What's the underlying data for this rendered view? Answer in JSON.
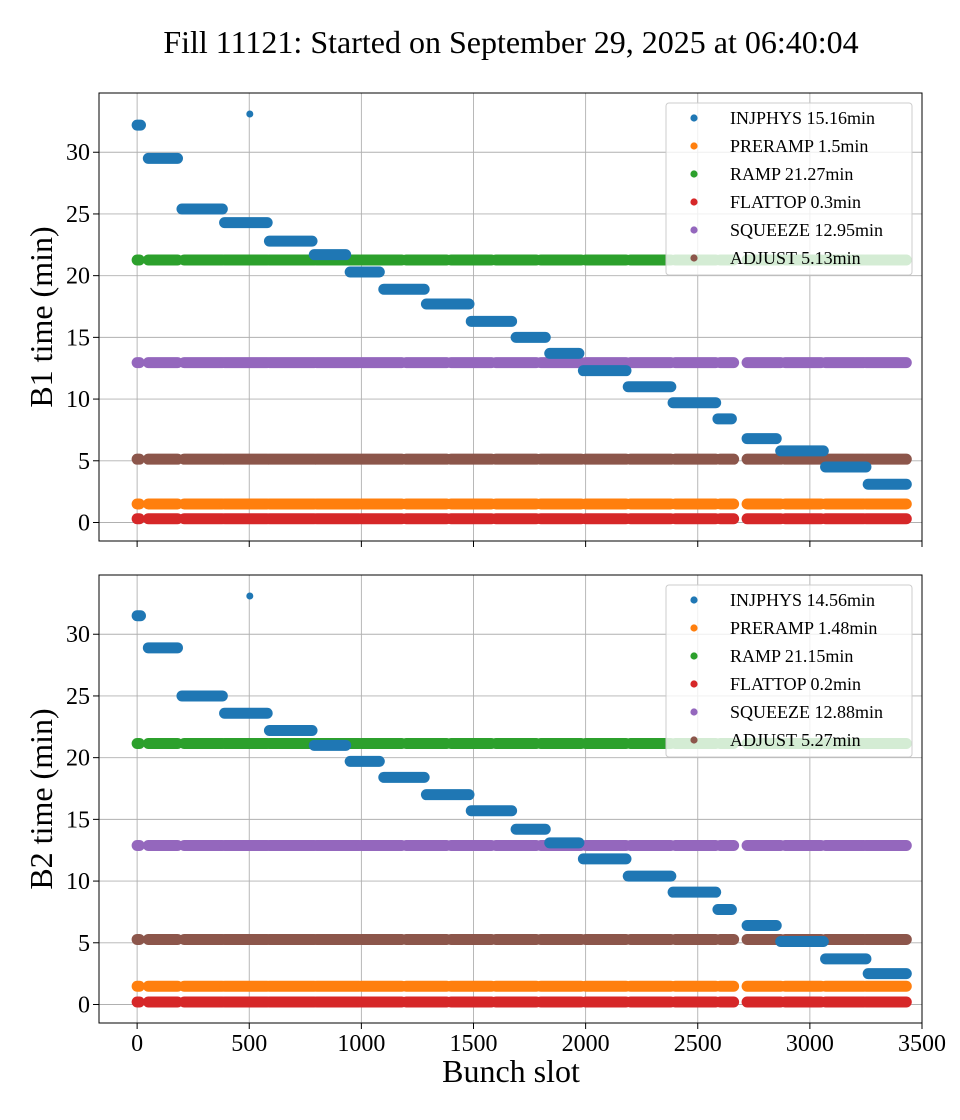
{
  "figure": {
    "title": "Fill 11121: Started on September 29, 2025 at 06:40:04",
    "xlabel": "Bunch slot"
  },
  "colors": {
    "INJPHYS": "#1f77b4",
    "PRERAMP": "#ff7f0e",
    "RAMP": "#2ca02c",
    "FLATTOP": "#d62728",
    "SQUEEZE": "#9467bd",
    "ADJUST": "#8c564b"
  },
  "chart_data": [
    {
      "type": "scatter",
      "ylabel": "B1 time (min)",
      "xlabel": "",
      "xlim": [
        -170,
        3500
      ],
      "ylim": [
        -1.5,
        34.8
      ],
      "xticks": [
        0,
        500,
        1000,
        1500,
        2000,
        2500,
        3000,
        3500
      ],
      "xtick_labels_shown": false,
      "yticks": [
        0,
        5,
        10,
        15,
        20,
        25,
        30
      ],
      "grid": true,
      "legend_position": "top-right",
      "legend": [
        "INJPHYS 15.16min",
        "PRERAMP 1.5min",
        "RAMP 21.27min",
        "FLATTOP 0.3min",
        "SQUEEZE 12.95min",
        "ADJUST 5.13min"
      ],
      "flat_series": [
        {
          "phase": "RAMP",
          "y": 21.27
        },
        {
          "phase": "SQUEEZE",
          "y": 12.95
        },
        {
          "phase": "ADJUST",
          "y": 5.13
        },
        {
          "phase": "PRERAMP",
          "y": 1.5
        },
        {
          "phase": "FLATTOP",
          "y": 0.3
        }
      ],
      "flat_x_ranges": [
        [
          0,
          10
        ],
        [
          50,
          180
        ],
        [
          210,
          380
        ],
        [
          390,
          580
        ],
        [
          590,
          790
        ],
        [
          800,
          990
        ],
        [
          1000,
          1180
        ],
        [
          1200,
          1380
        ],
        [
          1400,
          1580
        ],
        [
          1600,
          1780
        ],
        [
          1800,
          1980
        ],
        [
          2000,
          2180
        ],
        [
          2200,
          2380
        ],
        [
          2400,
          2580
        ],
        [
          2600,
          2660
        ],
        [
          2720,
          2870
        ],
        [
          2890,
          3050
        ],
        [
          3070,
          3240
        ],
        [
          3250,
          3430
        ]
      ],
      "injphys_trains": [
        {
          "x": [
            0,
            15
          ],
          "y": 32.2
        },
        {
          "x": [
            500,
            505
          ],
          "y": 33.1
        },
        {
          "x": [
            50,
            180
          ],
          "y": 29.5
        },
        {
          "x": [
            200,
            380
          ],
          "y": 25.4
        },
        {
          "x": [
            390,
            580
          ],
          "y": 24.3
        },
        {
          "x": [
            590,
            780
          ],
          "y": 22.8
        },
        {
          "x": [
            790,
            930
          ],
          "y": 21.7
        },
        {
          "x": [
            950,
            1080
          ],
          "y": 20.3
        },
        {
          "x": [
            1100,
            1280
          ],
          "y": 18.9
        },
        {
          "x": [
            1290,
            1480
          ],
          "y": 17.7
        },
        {
          "x": [
            1490,
            1670
          ],
          "y": 16.3
        },
        {
          "x": [
            1690,
            1820
          ],
          "y": 15.0
        },
        {
          "x": [
            1840,
            1970
          ],
          "y": 13.7
        },
        {
          "x": [
            1990,
            2180
          ],
          "y": 12.3
        },
        {
          "x": [
            2190,
            2380
          ],
          "y": 11.0
        },
        {
          "x": [
            2390,
            2580
          ],
          "y": 9.7
        },
        {
          "x": [
            2590,
            2650
          ],
          "y": 8.4
        },
        {
          "x": [
            2720,
            2850
          ],
          "y": 6.8
        },
        {
          "x": [
            2870,
            3060
          ],
          "y": 5.8
        },
        {
          "x": [
            3070,
            3250
          ],
          "y": 4.5
        },
        {
          "x": [
            3260,
            3430
          ],
          "y": 3.1
        }
      ]
    },
    {
      "type": "scatter",
      "ylabel": "B2 time (min)",
      "xlabel": "Bunch slot",
      "xlim": [
        -170,
        3500
      ],
      "ylim": [
        -1.5,
        34.8
      ],
      "xticks": [
        0,
        500,
        1000,
        1500,
        2000,
        2500,
        3000,
        3500
      ],
      "xtick_labels_shown": true,
      "yticks": [
        0,
        5,
        10,
        15,
        20,
        25,
        30
      ],
      "grid": true,
      "legend_position": "top-right",
      "legend": [
        "INJPHYS 14.56min",
        "PRERAMP 1.48min",
        "RAMP 21.15min",
        "FLATTOP 0.2min",
        "SQUEEZE 12.88min",
        "ADJUST 5.27min"
      ],
      "flat_series": [
        {
          "phase": "RAMP",
          "y": 21.15
        },
        {
          "phase": "SQUEEZE",
          "y": 12.88
        },
        {
          "phase": "ADJUST",
          "y": 5.27
        },
        {
          "phase": "PRERAMP",
          "y": 1.48
        },
        {
          "phase": "FLATTOP",
          "y": 0.2
        }
      ],
      "flat_x_ranges": [
        [
          0,
          10
        ],
        [
          50,
          180
        ],
        [
          210,
          380
        ],
        [
          390,
          580
        ],
        [
          590,
          790
        ],
        [
          800,
          990
        ],
        [
          1000,
          1180
        ],
        [
          1200,
          1380
        ],
        [
          1400,
          1580
        ],
        [
          1600,
          1780
        ],
        [
          1800,
          1980
        ],
        [
          2000,
          2180
        ],
        [
          2200,
          2380
        ],
        [
          2400,
          2580
        ],
        [
          2600,
          2660
        ],
        [
          2720,
          2870
        ],
        [
          2890,
          3050
        ],
        [
          3070,
          3240
        ],
        [
          3250,
          3430
        ]
      ],
      "injphys_trains": [
        {
          "x": [
            0,
            15
          ],
          "y": 31.5
        },
        {
          "x": [
            500,
            505
          ],
          "y": 33.1
        },
        {
          "x": [
            50,
            180
          ],
          "y": 28.9
        },
        {
          "x": [
            200,
            380
          ],
          "y": 25.0
        },
        {
          "x": [
            390,
            580
          ],
          "y": 23.6
        },
        {
          "x": [
            590,
            780
          ],
          "y": 22.2
        },
        {
          "x": [
            790,
            930
          ],
          "y": 21.0
        },
        {
          "x": [
            950,
            1080
          ],
          "y": 19.7
        },
        {
          "x": [
            1100,
            1280
          ],
          "y": 18.4
        },
        {
          "x": [
            1290,
            1480
          ],
          "y": 17.0
        },
        {
          "x": [
            1490,
            1670
          ],
          "y": 15.7
        },
        {
          "x": [
            1690,
            1820
          ],
          "y": 14.2
        },
        {
          "x": [
            1840,
            1970
          ],
          "y": 13.1
        },
        {
          "x": [
            1990,
            2180
          ],
          "y": 11.8
        },
        {
          "x": [
            2190,
            2380
          ],
          "y": 10.4
        },
        {
          "x": [
            2390,
            2580
          ],
          "y": 9.1
        },
        {
          "x": [
            2590,
            2650
          ],
          "y": 7.7
        },
        {
          "x": [
            2720,
            2850
          ],
          "y": 6.4
        },
        {
          "x": [
            2870,
            3060
          ],
          "y": 5.1
        },
        {
          "x": [
            3070,
            3250
          ],
          "y": 3.7
        },
        {
          "x": [
            3260,
            3430
          ],
          "y": 2.5
        }
      ]
    }
  ]
}
